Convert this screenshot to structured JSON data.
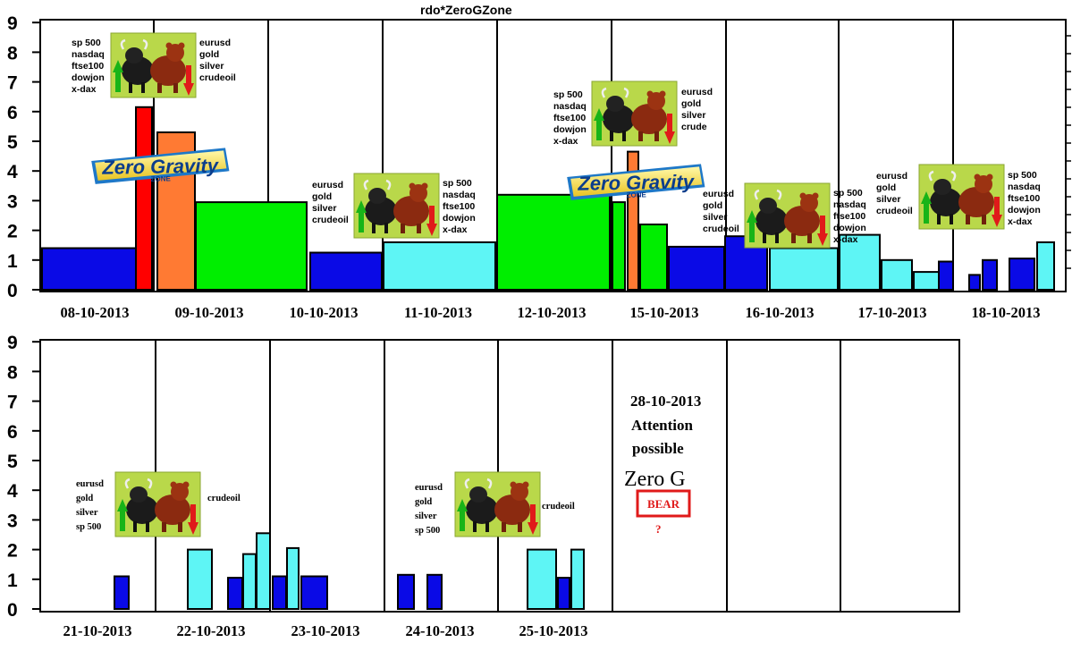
{
  "colors": {
    "blue": "#0a0ae6",
    "red": "#ff0000",
    "orange": "#ff7a33",
    "green": "#00ee00",
    "cyan": "#5ef5f5",
    "badge_green": "#b9d84a",
    "bear_red": "#e01a1a"
  },
  "chart_data": [
    {
      "type": "bar",
      "title": "rdo*ZeroGZone",
      "ylim": [
        0,
        9
      ],
      "yticks": [
        "0",
        "1",
        "2",
        "3",
        "4",
        "5",
        "6",
        "7",
        "8",
        "9"
      ],
      "day_labels": [
        "08-10-2013",
        "09-10-2013",
        "10-10-2013",
        "11-10-2013",
        "12-10-2013",
        "15-10-2013",
        "16-10-2013",
        "17-10-2013",
        "18-10-2013"
      ],
      "bars": [
        {
          "day": "08-10-2013",
          "value": 1.4,
          "color": "blue"
        },
        {
          "day": "08-10-2013",
          "value": 6.15,
          "color": "red"
        },
        {
          "day": "09-10-2013",
          "value": 5.3,
          "color": "orange"
        },
        {
          "day": "09-10-2013",
          "value": 2.95,
          "color": "green"
        },
        {
          "day": "10-10-2013",
          "value": 1.25,
          "color": "blue"
        },
        {
          "day": "11-10-2013",
          "value": 1.6,
          "color": "cyan"
        },
        {
          "day": "12-10-2013",
          "value": 3.2,
          "color": "green"
        },
        {
          "day": "15-10-2013",
          "value": 2.95,
          "color": "green"
        },
        {
          "day": "15-10-2013",
          "value": 4.65,
          "color": "orange"
        },
        {
          "day": "15-10-2013",
          "value": 2.2,
          "color": "green"
        },
        {
          "day": "15-10-2013",
          "value": 1.45,
          "color": "blue"
        },
        {
          "day": "16-10-2013",
          "value": 1.8,
          "color": "blue"
        },
        {
          "day": "16-10-2013",
          "value": 1.4,
          "color": "cyan"
        },
        {
          "day": "17-10-2013",
          "value": 1.85,
          "color": "cyan"
        },
        {
          "day": "17-10-2013",
          "value": 1.0,
          "color": "cyan"
        },
        {
          "day": "17-10-2013",
          "value": 0.6,
          "color": "cyan"
        },
        {
          "day": "17-10-2013",
          "value": 0.95,
          "color": "blue"
        },
        {
          "day": "18-10-2013",
          "value": 0.5,
          "color": "blue"
        },
        {
          "day": "18-10-2013",
          "value": 1.0,
          "color": "blue"
        },
        {
          "day": "18-10-2013",
          "value": 1.05,
          "color": "blue"
        },
        {
          "day": "18-10-2013",
          "value": 1.6,
          "color": "cyan"
        }
      ],
      "callouts": [
        {
          "left": [
            "sp 500",
            "nasdaq",
            "ftse100",
            "dowjon",
            "x-dax"
          ],
          "right": [
            "eurusd",
            "gold",
            "silver",
            "crudeoil"
          ]
        },
        {
          "left": [
            "eurusd",
            "gold",
            "silver",
            "crudeoil"
          ],
          "right": [
            "sp 500",
            "nasdaq",
            "ftse100",
            "dowjon",
            "x-dax"
          ]
        },
        {
          "left": [
            "sp 500",
            "nasdaq",
            "ftse100",
            "dowjon",
            "x-dax"
          ],
          "right": [
            "eurusd",
            "gold",
            "silver",
            "crude"
          ]
        },
        {
          "left": [
            "eurusd",
            "gold",
            "silver",
            "crudeoil"
          ],
          "right": [
            "sp 500",
            "nasdaq",
            "ftse100",
            "dowjon",
            "x-dax"
          ]
        },
        {
          "left": [
            "eurusd",
            "gold",
            "silver",
            "crudeoil"
          ],
          "right": [
            "sp 500",
            "nasdaq",
            "ftse100",
            "dowjon",
            "x-dax"
          ]
        }
      ],
      "logo_text": [
        "Zero Gravity",
        "ZONE"
      ]
    },
    {
      "type": "bar",
      "title": "",
      "ylim": [
        0,
        9
      ],
      "yticks": [
        "0",
        "1",
        "2",
        "3",
        "4",
        "5",
        "6",
        "7",
        "8",
        "9"
      ],
      "day_labels": [
        "21-10-2013",
        "22-10-2013",
        "23-10-2013",
        "24-10-2013",
        "25-10-2013"
      ],
      "bars": [
        {
          "day": "21-10-2013",
          "value": 1.1,
          "color": "blue"
        },
        {
          "day": "22-10-2013",
          "value": 2.0,
          "color": "cyan"
        },
        {
          "day": "22-10-2013",
          "value": 1.05,
          "color": "blue"
        },
        {
          "day": "22-10-2013",
          "value": 1.85,
          "color": "cyan"
        },
        {
          "day": "22-10-2013",
          "value": 2.55,
          "color": "cyan"
        },
        {
          "day": "23-10-2013",
          "value": 1.1,
          "color": "blue"
        },
        {
          "day": "23-10-2013",
          "value": 2.05,
          "color": "cyan"
        },
        {
          "day": "23-10-2013",
          "value": 1.1,
          "color": "blue"
        },
        {
          "day": "24-10-2013",
          "value": 1.15,
          "color": "blue"
        },
        {
          "day": "24-10-2013",
          "value": 1.15,
          "color": "blue"
        },
        {
          "day": "25-10-2013",
          "value": 2.0,
          "color": "cyan"
        },
        {
          "day": "25-10-2013",
          "value": 1.05,
          "color": "blue"
        },
        {
          "day": "25-10-2013",
          "value": 2.0,
          "color": "cyan"
        }
      ],
      "callouts": [
        {
          "left": [
            "eurusd",
            "gold",
            "silver",
            "sp 500"
          ],
          "right": [
            "crudeoil"
          ]
        },
        {
          "left": [
            "eurusd",
            "gold",
            "silver",
            "sp 500"
          ],
          "right": [
            "crudeoil"
          ]
        }
      ],
      "annotation": {
        "date": "28-10-2013",
        "line1": "Attention",
        "line2": "possible",
        "headline": "Zero G",
        "badge": "BEAR",
        "question": "?"
      }
    }
  ]
}
